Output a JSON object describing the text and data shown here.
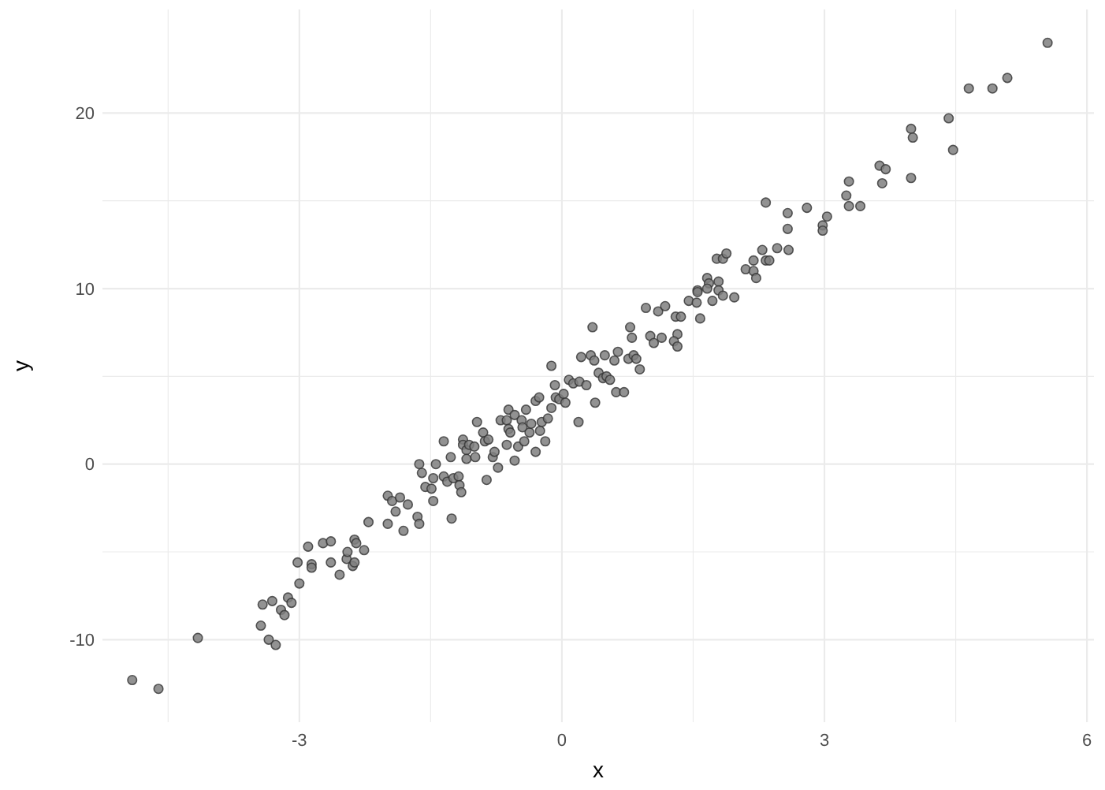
{
  "chart_data": {
    "type": "scatter",
    "xlabel": "x",
    "ylabel": "y",
    "grid": true,
    "marker": "circle",
    "xlim": [
      -5.25,
      6.08
    ],
    "ylim": [
      -14.7,
      25.9
    ],
    "xticks": [
      {
        "value": -4.5,
        "label": null
      },
      -3,
      {
        "value": -1.5,
        "label": null
      },
      0,
      {
        "value": 1.5,
        "label": null
      },
      3,
      {
        "value": 4.5,
        "label": null
      },
      6
    ],
    "yticks": [
      -10,
      {
        "value": -5,
        "label": null
      },
      0,
      {
        "value": 5,
        "label": null
      },
      10,
      {
        "value": 15,
        "label": null
      },
      20
    ],
    "series": [
      {
        "color": "#7f7f7f",
        "x": [
          -4.91,
          -4.61,
          -4.16,
          -3.44,
          -3.35,
          -3.27,
          -3.42,
          -3.31,
          -3.21,
          -3.17,
          -3.13,
          -3.09,
          -3.0,
          -3.02,
          -2.9,
          -2.86,
          -2.86,
          -2.73,
          -2.64,
          -2.64,
          -2.54,
          -2.46,
          -2.45,
          -2.37,
          -2.35,
          -2.39,
          -2.37,
          -2.26,
          -2.21,
          -1.99,
          -1.99,
          -1.94,
          -1.9,
          -1.85,
          -1.81,
          -1.76,
          -1.63,
          -1.6,
          -1.44,
          -1.47,
          -1.56,
          -1.49,
          -1.47,
          -1.65,
          -1.63,
          -1.26,
          -1.35,
          -1.27,
          -1.35,
          -1.31,
          -1.24,
          -1.18,
          -1.17,
          -1.15,
          -1.13,
          -1.13,
          -1.09,
          -1.09,
          -1.06,
          -1.0,
          -0.99,
          -0.97,
          -0.9,
          -0.88,
          -0.84,
          -0.86,
          -0.79,
          -0.77,
          -0.73,
          -0.7,
          -0.63,
          -0.61,
          -0.61,
          -0.59,
          -0.63,
          -0.54,
          -0.54,
          -0.5,
          -0.46,
          -0.45,
          -0.43,
          -0.41,
          -0.37,
          -0.35,
          -0.3,
          -0.26,
          -0.3,
          -0.25,
          -0.23,
          -0.19,
          -0.16,
          -0.12,
          -0.12,
          -0.08,
          -0.07,
          -0.03,
          0.02,
          0.04,
          0.08,
          0.13,
          0.2,
          0.28,
          0.19,
          0.38,
          0.22,
          0.33,
          0.37,
          0.35,
          0.42,
          0.47,
          0.51,
          0.55,
          0.49,
          0.6,
          0.64,
          0.62,
          0.71,
          0.76,
          0.82,
          0.85,
          0.89,
          0.8,
          0.78,
          0.96,
          1.01,
          1.05,
          1.14,
          1.1,
          1.18,
          1.3,
          1.36,
          1.32,
          1.28,
          1.32,
          1.45,
          1.54,
          1.55,
          1.55,
          1.58,
          1.66,
          1.68,
          1.66,
          1.72,
          1.79,
          1.79,
          1.84,
          1.97,
          1.77,
          1.84,
          1.88,
          2.1,
          2.19,
          2.22,
          2.19,
          2.33,
          2.37,
          2.29,
          2.46,
          2.58,
          2.59,
          2.33,
          2.58,
          2.8,
          3.03,
          2.98,
          2.98,
          3.25,
          3.28,
          3.28,
          3.41,
          3.63,
          3.7,
          3.66,
          3.99,
          4.01,
          3.99,
          4.42,
          4.47,
          4.65,
          4.92,
          5.09,
          5.55
        ],
        "values": [
          -12.3,
          -12.8,
          -9.9,
          -9.2,
          -10.0,
          -10.3,
          -8.0,
          -7.8,
          -8.3,
          -8.6,
          -7.6,
          -7.9,
          -6.8,
          -5.6,
          -4.7,
          -5.7,
          -5.9,
          -4.5,
          -4.4,
          -5.6,
          -6.3,
          -5.4,
          -5.0,
          -4.3,
          -4.5,
          -5.8,
          -5.6,
          -4.9,
          -3.3,
          -3.4,
          -1.8,
          -2.1,
          -2.7,
          -1.9,
          -3.8,
          -2.3,
          0.0,
          -0.5,
          0.0,
          -0.8,
          -1.3,
          -1.4,
          -2.1,
          -3.0,
          -3.4,
          -3.1,
          1.3,
          0.4,
          -0.7,
          -1.0,
          -0.8,
          -0.7,
          -1.2,
          -1.6,
          1.4,
          1.1,
          0.8,
          0.3,
          1.1,
          1.0,
          0.4,
          2.4,
          1.8,
          1.3,
          1.4,
          -0.9,
          0.4,
          0.7,
          -0.2,
          2.5,
          2.5,
          3.1,
          2.0,
          1.8,
          1.1,
          2.8,
          0.2,
          1.0,
          2.5,
          2.1,
          1.3,
          3.1,
          1.8,
          2.3,
          3.6,
          3.8,
          0.7,
          1.9,
          2.4,
          1.3,
          2.6,
          3.2,
          5.6,
          4.5,
          3.8,
          3.7,
          4.0,
          3.5,
          4.8,
          4.6,
          4.7,
          4.5,
          2.4,
          3.5,
          6.1,
          6.2,
          5.9,
          7.8,
          5.2,
          4.9,
          5.0,
          4.8,
          6.2,
          5.9,
          6.4,
          4.1,
          4.1,
          6.0,
          6.2,
          6.0,
          5.4,
          7.2,
          7.8,
          8.9,
          7.3,
          6.9,
          7.2,
          8.7,
          9.0,
          8.4,
          8.4,
          7.4,
          7.0,
          6.7,
          9.3,
          9.2,
          9.9,
          9.8,
          8.3,
          10.6,
          10.3,
          10.0,
          9.3,
          10.4,
          9.9,
          9.6,
          9.5,
          11.7,
          11.7,
          12.0,
          11.1,
          11.0,
          10.6,
          11.6,
          11.6,
          11.6,
          12.2,
          12.3,
          13.4,
          12.2,
          14.9,
          14.3,
          14.6,
          14.1,
          13.6,
          13.3,
          15.3,
          16.1,
          14.7,
          14.7,
          17.0,
          16.8,
          16.0,
          19.1,
          18.6,
          16.3,
          19.7,
          17.9,
          21.4,
          21.4,
          22.0,
          24.0
        ]
      }
    ]
  }
}
